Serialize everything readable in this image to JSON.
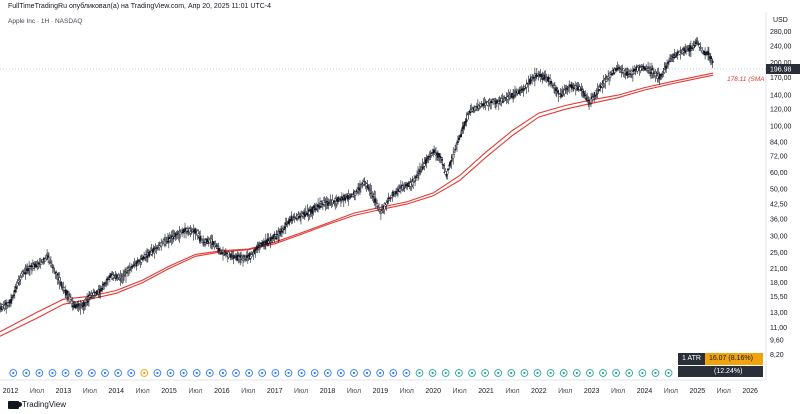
{
  "header": {
    "publish_text": "FullTimeTradingRu опубликовал(а) на TradingView.com, Апр 20, 2025 11:01 UTC-4",
    "symbol_text": "Apple Inc · 1Н · NASDAQ",
    "currency": "USD"
  },
  "branding": {
    "logo_text": "TradingView",
    "logo_icon": "tradingview-logo-icon"
  },
  "indicator": {
    "atr_label": "1 ATR",
    "atr_value": "16.07 (8.16%)",
    "second_value": "(12.24%)",
    "ma_value_label": "178.11 (SMA",
    "price_label": "196.98"
  },
  "colors": {
    "candle_up": "#131722",
    "candle_down": "#131722",
    "ma": "#e53935",
    "atr_bg": "#f0a30a",
    "price_label_bg": "#2a2e39",
    "earnings_circle": "#3179f5",
    "dividend_circle": "#26a69a",
    "split_marker": "#f0a30a",
    "event_red": "#e53935"
  },
  "chart_data": {
    "type": "line",
    "y_scale": "log",
    "ylim": [
      6.2,
      340
    ],
    "y_ticks": [
      8.2,
      9.6,
      11.0,
      13.0,
      15.5,
      18.0,
      21.0,
      25.0,
      30.0,
      36.0,
      42.5,
      50.0,
      60.0,
      72.0,
      84.0,
      100.0,
      120.0,
      140.0,
      170.0,
      200.0,
      240.0,
      280.0
    ],
    "y_tick_labels": [
      "8,20",
      "9,60",
      "11,00",
      "13,00",
      "15,50",
      "18,00",
      "21,00",
      "25,00",
      "30,00",
      "36,00",
      "42,50",
      "50,00",
      "60,00",
      "72,00",
      "84,00",
      "100,00",
      "120,00",
      "140,00",
      "170,00",
      "200,00",
      "240,00",
      "280,00"
    ],
    "xlim": [
      2011.8,
      2026.3
    ],
    "x_ticks": [
      {
        "t": 2012.0,
        "label": "2012",
        "major": true
      },
      {
        "t": 2012.5,
        "label": "Июл",
        "major": false
      },
      {
        "t": 2013.0,
        "label": "2013",
        "major": true
      },
      {
        "t": 2013.5,
        "label": "Июл",
        "major": false
      },
      {
        "t": 2014.0,
        "label": "2014",
        "major": true
      },
      {
        "t": 2014.5,
        "label": "Июл",
        "major": false
      },
      {
        "t": 2015.0,
        "label": "2015",
        "major": true
      },
      {
        "t": 2015.5,
        "label": "Июл",
        "major": false
      },
      {
        "t": 2016.0,
        "label": "2016",
        "major": true
      },
      {
        "t": 2016.5,
        "label": "Июл",
        "major": false
      },
      {
        "t": 2017.0,
        "label": "2017",
        "major": true
      },
      {
        "t": 2017.5,
        "label": "Июл",
        "major": false
      },
      {
        "t": 2018.0,
        "label": "2018",
        "major": true
      },
      {
        "t": 2018.5,
        "label": "Июл",
        "major": false
      },
      {
        "t": 2019.0,
        "label": "2019",
        "major": true
      },
      {
        "t": 2019.5,
        "label": "Июл",
        "major": false
      },
      {
        "t": 2020.0,
        "label": "2020",
        "major": true
      },
      {
        "t": 2020.5,
        "label": "Июл",
        "major": false
      },
      {
        "t": 2021.0,
        "label": "2021",
        "major": true
      },
      {
        "t": 2021.5,
        "label": "Июл",
        "major": false
      },
      {
        "t": 2022.0,
        "label": "2022",
        "major": true
      },
      {
        "t": 2022.5,
        "label": "Июл",
        "major": false
      },
      {
        "t": 2023.0,
        "label": "2023",
        "major": true
      },
      {
        "t": 2023.5,
        "label": "Июл",
        "major": false
      },
      {
        "t": 2024.0,
        "label": "2024",
        "major": true
      },
      {
        "t": 2024.5,
        "label": "Июл",
        "major": false
      },
      {
        "t": 2025.0,
        "label": "2025",
        "major": true
      },
      {
        "t": 2025.5,
        "label": "Июл",
        "major": false
      },
      {
        "t": 2026.0,
        "label": "2026",
        "major": true
      }
    ],
    "series": [
      {
        "kind": "price",
        "x": [
          2011.8,
          2012.0,
          2012.2,
          2012.4,
          2012.55,
          2012.7,
          2012.85,
          2013.0,
          2013.2,
          2013.35,
          2013.5,
          2013.7,
          2013.9,
          2014.1,
          2014.3,
          2014.5,
          2014.7,
          2014.9,
          2015.1,
          2015.3,
          2015.5,
          2015.65,
          2015.8,
          2016.0,
          2016.2,
          2016.4,
          2016.55,
          2016.7,
          2016.9,
          2017.1,
          2017.3,
          2017.5,
          2017.7,
          2017.9,
          2018.1,
          2018.3,
          2018.5,
          2018.7,
          2018.9,
          2019.0,
          2019.2,
          2019.4,
          2019.6,
          2019.8,
          2020.0,
          2020.15,
          2020.25,
          2020.4,
          2020.55,
          2020.7,
          2020.9,
          2021.1,
          2021.3,
          2021.5,
          2021.7,
          2021.9,
          2022.0,
          2022.2,
          2022.4,
          2022.6,
          2022.8,
          2022.95,
          2023.1,
          2023.3,
          2023.5,
          2023.7,
          2023.9,
          2024.1,
          2024.3,
          2024.5,
          2024.7,
          2024.9,
          2025.0,
          2025.1,
          2025.2,
          2025.3
        ],
        "y": [
          13.5,
          14.5,
          19.5,
          21.5,
          22.0,
          24.0,
          20.0,
          17.0,
          14.0,
          13.8,
          15.5,
          16.5,
          19.5,
          19.0,
          21.5,
          23.5,
          25.5,
          28.0,
          30.0,
          32.0,
          31.5,
          28.0,
          28.5,
          25.0,
          24.0,
          23.5,
          24.0,
          27.0,
          28.5,
          31.0,
          36.0,
          37.5,
          39.5,
          43.0,
          43.5,
          45.0,
          47.0,
          54.0,
          45.0,
          38.5,
          46.0,
          51.0,
          53.0,
          64.0,
          76.0,
          70.0,
          58.0,
          75.0,
          95.0,
          118.0,
          125.0,
          130.0,
          132.0,
          140.0,
          148.0,
          170.0,
          175.0,
          165.0,
          140.0,
          155.0,
          150.0,
          128.0,
          145.0,
          170.0,
          190.0,
          175.0,
          190.0,
          185.0,
          170.0,
          210.0,
          225.0,
          235.0,
          250.0,
          225.0,
          220.0,
          196.98
        ]
      },
      {
        "kind": "ma_fast",
        "x": [
          2011.8,
          2012.5,
          2013.0,
          2013.5,
          2014.0,
          2014.5,
          2015.0,
          2015.5,
          2016.0,
          2016.5,
          2017.0,
          2017.5,
          2018.0,
          2018.5,
          2019.0,
          2019.5,
          2020.0,
          2020.5,
          2021.0,
          2021.5,
          2022.0,
          2022.5,
          2023.0,
          2023.5,
          2024.0,
          2024.5,
          2025.0,
          2025.3
        ],
        "y": [
          10.5,
          13.0,
          15.0,
          15.5,
          16.5,
          18.5,
          21.5,
          24.5,
          25.5,
          26.0,
          28.0,
          31.0,
          34.5,
          38.5,
          41.0,
          43.5,
          48.0,
          58.0,
          75.0,
          95.0,
          115.0,
          125.0,
          133.0,
          140.0,
          152.0,
          162.0,
          172.0,
          178.11
        ]
      },
      {
        "kind": "ma_slow",
        "x": [
          2011.8,
          2012.5,
          2013.0,
          2013.5,
          2014.0,
          2014.5,
          2015.0,
          2015.5,
          2016.0,
          2016.5,
          2017.0,
          2017.5,
          2018.0,
          2018.5,
          2019.0,
          2019.5,
          2020.0,
          2020.5,
          2021.0,
          2021.5,
          2022.0,
          2022.5,
          2023.0,
          2023.5,
          2024.0,
          2024.5,
          2025.0,
          2025.3
        ],
        "y": [
          10.0,
          12.2,
          14.2,
          15.0,
          16.0,
          18.0,
          21.0,
          24.0,
          25.2,
          25.8,
          27.5,
          30.5,
          34.0,
          37.5,
          40.0,
          42.5,
          46.5,
          55.0,
          71.0,
          90.0,
          110.0,
          120.0,
          128.0,
          136.0,
          148.0,
          158.0,
          168.0,
          174.0
        ]
      }
    ],
    "current_price": 196.98,
    "ma_value": 178.11,
    "grid": false,
    "event_markers": {
      "earnings_count": 14,
      "dividend_count": 40,
      "split_year": 2014.5
    }
  }
}
